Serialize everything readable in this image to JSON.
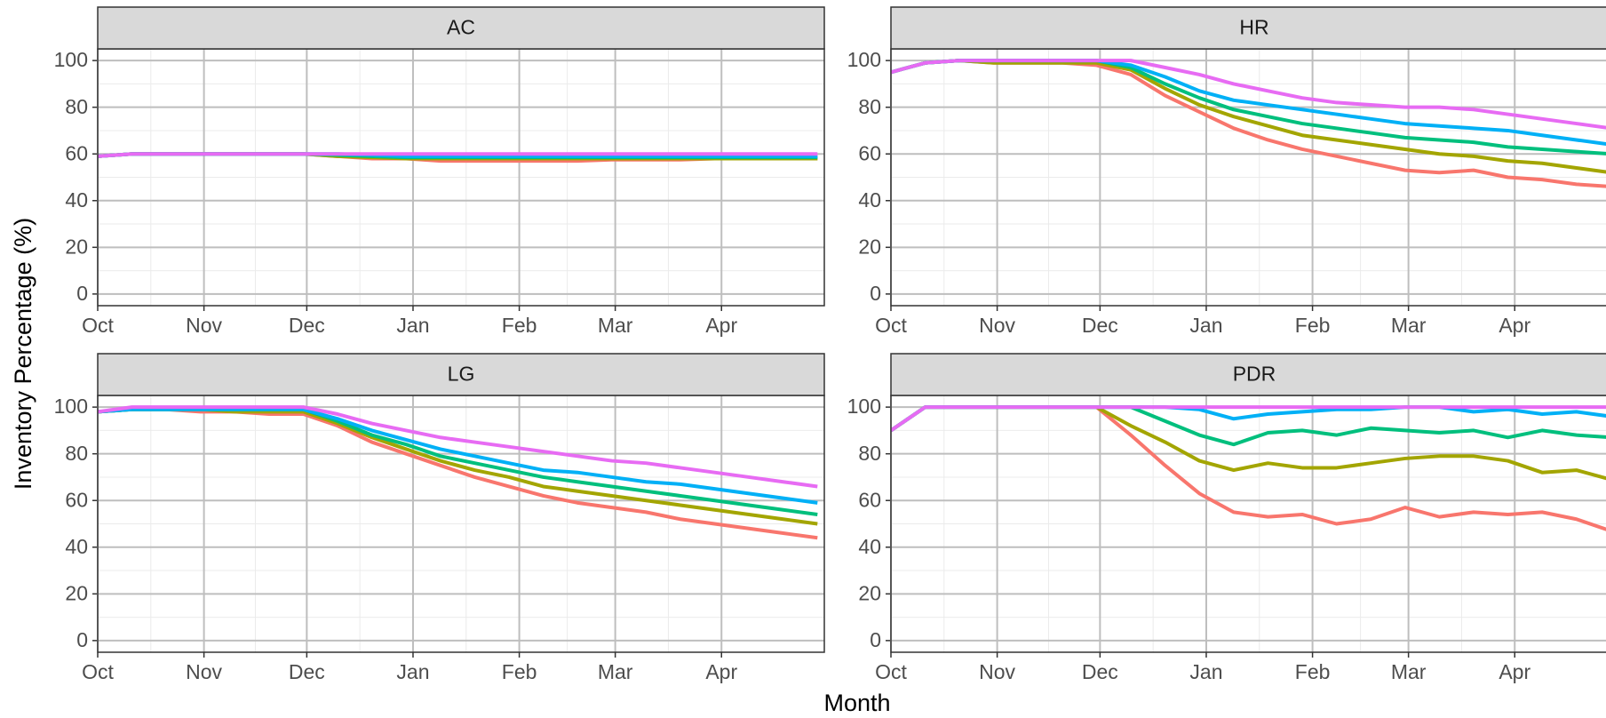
{
  "x_label": "Month",
  "y_label": "Inventory Percentage (%)",
  "chart_data": [
    {
      "type": "line",
      "title": "AC",
      "x": [
        0,
        10,
        20,
        30,
        40,
        50,
        60,
        70,
        80,
        90,
        100,
        110,
        120,
        130,
        140,
        150,
        160,
        170,
        180,
        190,
        200,
        210
      ],
      "xlim": [
        0,
        212
      ],
      "ylim": [
        -5,
        105
      ],
      "xticks": [
        {
          "value": 0,
          "label": "Oct"
        },
        {
          "value": 31,
          "label": "Nov"
        },
        {
          "value": 61,
          "label": "Dec"
        },
        {
          "value": 92,
          "label": "Jan"
        },
        {
          "value": 123,
          "label": "Feb"
        },
        {
          "value": 151,
          "label": "Mar"
        },
        {
          "value": 182,
          "label": "Apr"
        }
      ],
      "yticks": [
        0,
        20,
        40,
        60,
        80,
        100
      ],
      "grid": true,
      "series": [
        {
          "color": "#F8766D",
          "values": [
            59,
            60,
            60,
            60,
            60,
            60,
            60,
            59,
            58,
            58,
            57,
            57,
            57,
            57,
            57,
            57.5,
            57.5,
            57.5,
            58,
            58,
            58,
            58
          ]
        },
        {
          "color": "#A3A500",
          "values": [
            59,
            60,
            60,
            60,
            60,
            60,
            60,
            59,
            58.5,
            58,
            58,
            58,
            58,
            58,
            58,
            58,
            58,
            58,
            58,
            58,
            58,
            58
          ]
        },
        {
          "color": "#00BF7D",
          "values": [
            59,
            60,
            60,
            60,
            60,
            60,
            60,
            59.5,
            59,
            58.5,
            58.5,
            58.5,
            58.5,
            58.5,
            58.5,
            58.5,
            58.5,
            58.5,
            58.5,
            58.5,
            58.5,
            58.5
          ]
        },
        {
          "color": "#00B0F6",
          "values": [
            59,
            60,
            60,
            60,
            60,
            60,
            60,
            60,
            59.5,
            59,
            59,
            59,
            59,
            59,
            59,
            59,
            59,
            59,
            59,
            59,
            59,
            59
          ]
        },
        {
          "color": "#E76BF3",
          "values": [
            59,
            60,
            60,
            60,
            60,
            60,
            60,
            60,
            60,
            60,
            60,
            60,
            60,
            60,
            60,
            60,
            60,
            60,
            60,
            60,
            60,
            60
          ]
        }
      ]
    },
    {
      "type": "line",
      "title": "HR",
      "x": [
        0,
        10,
        20,
        30,
        40,
        50,
        60,
        70,
        80,
        90,
        100,
        110,
        120,
        130,
        140,
        150,
        160,
        170,
        180,
        190,
        200,
        210
      ],
      "xlim": [
        0,
        212
      ],
      "ylim": [
        -5,
        105
      ],
      "xticks": [
        {
          "value": 0,
          "label": "Oct"
        },
        {
          "value": 31,
          "label": "Nov"
        },
        {
          "value": 61,
          "label": "Dec"
        },
        {
          "value": 92,
          "label": "Jan"
        },
        {
          "value": 123,
          "label": "Feb"
        },
        {
          "value": 151,
          "label": "Mar"
        },
        {
          "value": 182,
          "label": "Apr"
        }
      ],
      "yticks": [
        0,
        20,
        40,
        60,
        80,
        100
      ],
      "grid": true,
      "series": [
        {
          "color": "#F8766D",
          "values": [
            95,
            99,
            100,
            99,
            99,
            99,
            98,
            94,
            85,
            78,
            71,
            66,
            62,
            59,
            56,
            53,
            52,
            53,
            50,
            49,
            47,
            46
          ]
        },
        {
          "color": "#A3A500",
          "values": [
            95,
            99,
            100,
            99,
            99,
            99,
            99,
            96,
            88,
            81,
            76,
            72,
            68,
            66,
            64,
            62,
            60,
            59,
            57,
            56,
            54,
            52
          ]
        },
        {
          "color": "#00BF7D",
          "values": [
            95,
            99,
            100,
            100,
            100,
            100,
            100,
            97,
            90,
            84,
            79,
            76,
            73,
            71,
            69,
            67,
            66,
            65,
            63,
            62,
            61,
            60
          ]
        },
        {
          "color": "#00B0F6",
          "values": [
            95,
            99,
            100,
            100,
            100,
            100,
            100,
            98,
            93,
            87,
            83,
            81,
            79,
            77,
            75,
            73,
            72,
            71,
            70,
            68,
            66,
            64
          ]
        },
        {
          "color": "#E76BF3",
          "values": [
            95,
            99,
            100,
            100,
            100,
            100,
            100,
            100,
            97,
            94,
            90,
            87,
            84,
            82,
            81,
            80,
            80,
            79,
            77,
            75,
            73,
            71
          ]
        }
      ]
    },
    {
      "type": "line",
      "title": "LG",
      "x": [
        0,
        10,
        20,
        30,
        40,
        50,
        60,
        70,
        80,
        90,
        100,
        110,
        120,
        130,
        140,
        150,
        160,
        170,
        180,
        190,
        200,
        210
      ],
      "xlim": [
        0,
        212
      ],
      "ylim": [
        -5,
        105
      ],
      "xticks": [
        {
          "value": 0,
          "label": "Oct"
        },
        {
          "value": 31,
          "label": "Nov"
        },
        {
          "value": 61,
          "label": "Dec"
        },
        {
          "value": 92,
          "label": "Jan"
        },
        {
          "value": 123,
          "label": "Feb"
        },
        {
          "value": 151,
          "label": "Mar"
        },
        {
          "value": 182,
          "label": "Apr"
        }
      ],
      "yticks": [
        0,
        20,
        40,
        60,
        80,
        100
      ],
      "grid": true,
      "series": [
        {
          "color": "#F8766D",
          "values": [
            98,
            99,
            99,
            98,
            98,
            97,
            97,
            92,
            85,
            80,
            75,
            70,
            66,
            62,
            59,
            57,
            55,
            52,
            50,
            48,
            46,
            44
          ]
        },
        {
          "color": "#A3A500",
          "values": [
            98,
            99,
            99,
            99,
            98,
            98,
            98,
            93,
            87,
            82,
            77,
            73,
            70,
            66,
            64,
            62,
            60,
            58,
            56,
            54,
            52,
            50
          ]
        },
        {
          "color": "#00BF7D",
          "values": [
            98,
            99,
            99,
            99,
            99,
            99,
            99,
            94,
            88,
            84,
            79,
            76,
            73,
            70,
            68,
            66,
            64,
            62,
            60,
            58,
            56,
            54
          ]
        },
        {
          "color": "#00B0F6",
          "values": [
            98,
            99,
            99,
            99,
            99,
            99,
            99,
            95,
            90,
            86,
            82,
            79,
            76,
            73,
            72,
            70,
            68,
            67,
            65,
            63,
            61,
            59
          ]
        },
        {
          "color": "#E76BF3",
          "values": [
            98,
            100,
            100,
            100,
            100,
            100,
            100,
            97,
            93,
            90,
            87,
            85,
            83,
            81,
            79,
            77,
            76,
            74,
            72,
            70,
            68,
            66
          ]
        }
      ]
    },
    {
      "type": "line",
      "title": "PDR",
      "x": [
        0,
        10,
        20,
        30,
        40,
        50,
        60,
        70,
        80,
        90,
        100,
        110,
        120,
        130,
        140,
        150,
        160,
        170,
        180,
        190,
        200,
        210
      ],
      "xlim": [
        0,
        212
      ],
      "ylim": [
        -5,
        105
      ],
      "xticks": [
        {
          "value": 0,
          "label": "Oct"
        },
        {
          "value": 31,
          "label": "Nov"
        },
        {
          "value": 61,
          "label": "Dec"
        },
        {
          "value": 92,
          "label": "Jan"
        },
        {
          "value": 123,
          "label": "Feb"
        },
        {
          "value": 151,
          "label": "Mar"
        },
        {
          "value": 182,
          "label": "Apr"
        }
      ],
      "yticks": [
        0,
        20,
        40,
        60,
        80,
        100
      ],
      "grid": true,
      "series": [
        {
          "color": "#F8766D",
          "values": [
            90,
            100,
            100,
            100,
            100,
            100,
            100,
            88,
            75,
            63,
            55,
            53,
            54,
            50,
            52,
            57,
            53,
            55,
            54,
            55,
            52,
            47
          ]
        },
        {
          "color": "#A3A500",
          "values": [
            90,
            100,
            100,
            100,
            100,
            100,
            100,
            92,
            85,
            77,
            73,
            76,
            74,
            74,
            76,
            78,
            79,
            79,
            77,
            72,
            73,
            69
          ]
        },
        {
          "color": "#00BF7D",
          "values": [
            90,
            100,
            100,
            100,
            100,
            100,
            100,
            100,
            94,
            88,
            84,
            89,
            90,
            88,
            91,
            90,
            89,
            90,
            87,
            90,
            88,
            87
          ]
        },
        {
          "color": "#00B0F6",
          "values": [
            90,
            100,
            100,
            100,
            100,
            100,
            100,
            100,
            100,
            99,
            95,
            97,
            98,
            99,
            99,
            100,
            100,
            98,
            99,
            97,
            98,
            96
          ]
        },
        {
          "color": "#E76BF3",
          "values": [
            90,
            100,
            100,
            100,
            100,
            100,
            100,
            100,
            100,
            100,
            100,
            100,
            100,
            100,
            100,
            100,
            100,
            100,
            100,
            100,
            100,
            100
          ]
        }
      ]
    }
  ]
}
